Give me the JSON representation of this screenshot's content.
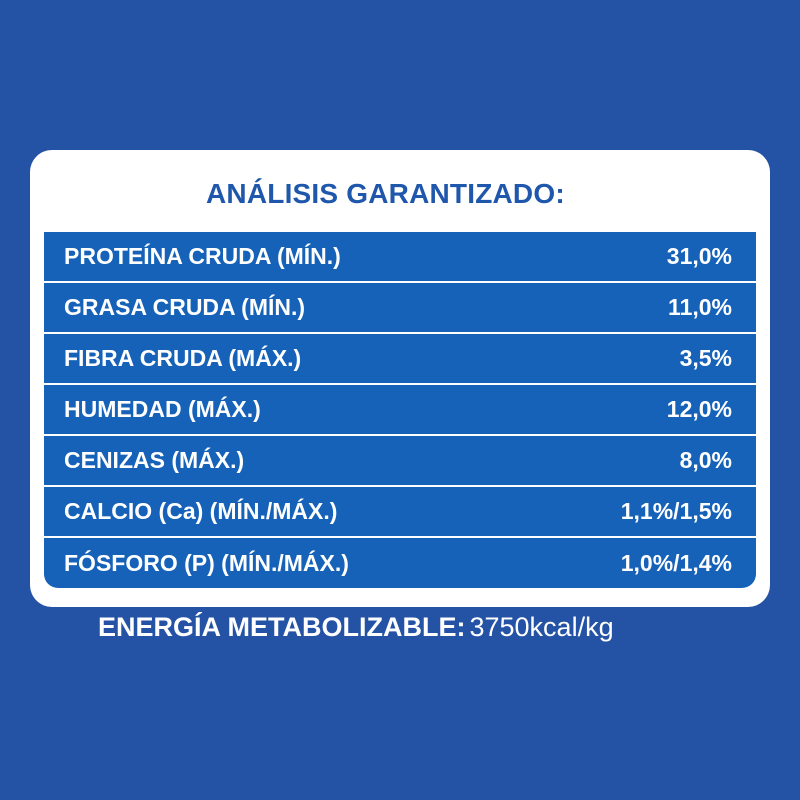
{
  "panel": {
    "title": "ANÁLISIS GARANTIZADO:",
    "rows": [
      {
        "label": "PROTEÍNA CRUDA (MÍN.)",
        "value": "31,0%"
      },
      {
        "label": "GRASA CRUDA (MÍN.)",
        "value": "11,0%"
      },
      {
        "label": "FIBRA CRUDA (MÁX.)",
        "value": "3,5%"
      },
      {
        "label": "HUMEDAD (MÁX.)",
        "value": "12,0%"
      },
      {
        "label": "CENIZAS (MÁX.)",
        "value": "8,0%"
      },
      {
        "label": "CALCIO (Ca) (MÍN./MÁX.)",
        "value": "1,1%/1,5%"
      },
      {
        "label": "FÓSFORO (P) (MÍN./MÁX.)",
        "value": "1,0%/1,4%"
      }
    ]
  },
  "energy": {
    "label": "ENERGÍA METABOLIZABLE:",
    "value": "3750kcal/kg"
  },
  "colors": {
    "background": "#2453A6",
    "row": "#1662B9",
    "title": "#1E57AB"
  }
}
